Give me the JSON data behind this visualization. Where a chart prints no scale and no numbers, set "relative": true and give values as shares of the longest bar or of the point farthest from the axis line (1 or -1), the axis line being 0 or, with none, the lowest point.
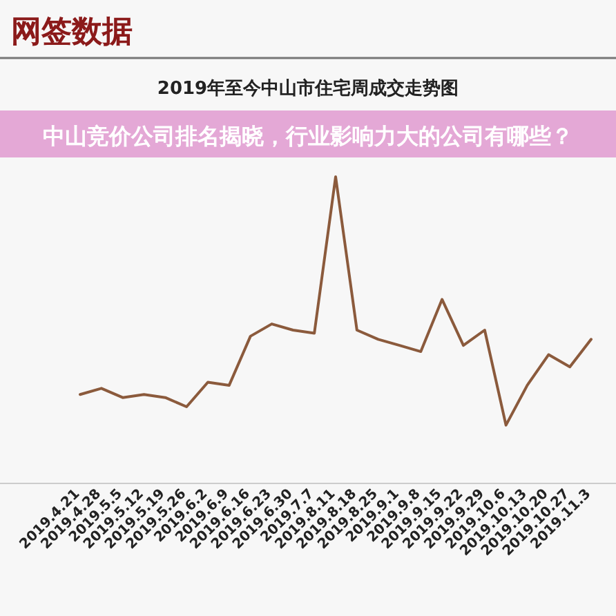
{
  "chart_data": {
    "type": "line",
    "title": "2019年至今中山市住宅周成交走势图",
    "relative": true,
    "annotations": [
      "网签数据",
      "中山竞价公司排名揭晓，行业影响力大的公司有哪些？"
    ],
    "categories": [
      "2019.4.21",
      "2019.4.28",
      "2019.5.5",
      "2019.5.12",
      "2019.5.19",
      "2019.5.26",
      "2019.6.2",
      "2019.6.9",
      "2019.6.16",
      "2019.6.23",
      "2019.6.30",
      "2019.7.7",
      "2019.8.11",
      "2019.8.18",
      "2019.8.25",
      "2019.9.1",
      "2019.9.8",
      "2019.9.15",
      "2019.9.22",
      "2019.9.29",
      "2019.10.6",
      "2019.10.13",
      "2019.10.20",
      "2019.10.27",
      "2019.11.3"
    ],
    "series": [
      {
        "color": "#8b5a3c",
        "values": [
          0.29,
          0.31,
          0.28,
          0.29,
          0.28,
          0.25,
          0.33,
          0.32,
          0.48,
          0.52,
          0.5,
          0.49,
          1.0,
          0.5,
          0.47,
          0.45,
          0.43,
          0.6,
          0.45,
          0.5,
          0.19,
          0.32,
          0.42,
          0.38,
          0.47
        ]
      }
    ]
  }
}
